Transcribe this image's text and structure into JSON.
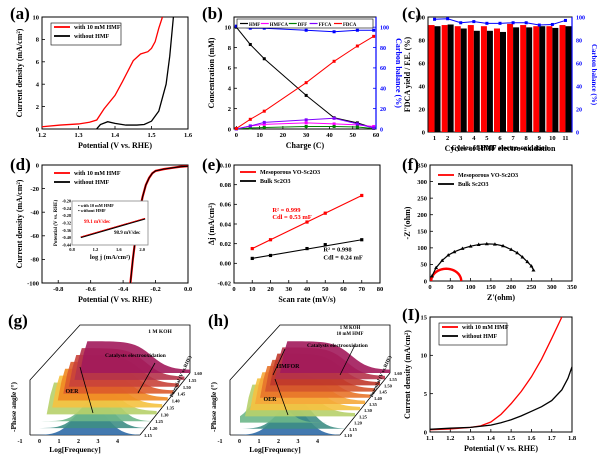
{
  "chart_data": [
    {
      "id": "a",
      "panel_label": "(a)",
      "type": "line",
      "xlabel": "Potential (V vs. RHE)",
      "ylabel": "Current density (mA/cm²)",
      "xlim": [
        1.2,
        1.6
      ],
      "ylim": [
        0,
        10
      ],
      "xticks": [
        "1.2",
        "1.3",
        "1.4",
        "1.5",
        "1.6"
      ],
      "yticks": [
        "0",
        "2",
        "4",
        "6",
        "8",
        "10"
      ],
      "legend": "top-left",
      "series": [
        {
          "name": "with 10 mM HMF",
          "color": "#ff0000",
          "x": [
            1.2,
            1.25,
            1.3,
            1.33,
            1.35,
            1.37,
            1.4,
            1.42,
            1.45,
            1.47,
            1.49,
            1.5,
            1.51,
            1.52,
            1.53
          ],
          "y": [
            0.2,
            0.35,
            0.45,
            0.6,
            0.8,
            1.8,
            3.0,
            4.2,
            6.1,
            6.7,
            6.9,
            7.2,
            7.8,
            9.0,
            10
          ]
        },
        {
          "name": "without HMF",
          "color": "#000000",
          "x": [
            1.35,
            1.36,
            1.38,
            1.4,
            1.43,
            1.46,
            1.48,
            1.5,
            1.52,
            1.54,
            1.55,
            1.56
          ],
          "y": [
            0.02,
            0.4,
            0.65,
            0.5,
            0.35,
            0.35,
            0.4,
            0.7,
            1.6,
            4.0,
            6.5,
            10
          ]
        }
      ]
    },
    {
      "id": "b",
      "panel_label": "(b)",
      "type": "line",
      "xlabel": "Charge (C)",
      "ylabel": "Concentration (mM)",
      "y2label": "Carbon balance (%)",
      "xlim": [
        -1,
        60
      ],
      "ylim": [
        0,
        11
      ],
      "y2lim": [
        0,
        110
      ],
      "xticks": [
        "0",
        "10",
        "20",
        "30",
        "40",
        "50",
        "60"
      ],
      "yticks": [
        "0",
        "2",
        "4",
        "6",
        "8",
        "10"
      ],
      "y2ticks": [
        "0",
        "20",
        "40",
        "60",
        "80",
        "100"
      ],
      "legend": "top",
      "series": [
        {
          "name": "HMF",
          "color": "#000000",
          "x": [
            0,
            6,
            12,
            30,
            42,
            52,
            59
          ],
          "y": [
            10,
            8.3,
            6.9,
            3.3,
            1.1,
            0.6,
            0.1
          ]
        },
        {
          "name": "HMFCA",
          "color": "#ff00ff",
          "x": [
            0,
            6,
            12,
            30,
            42,
            52,
            59
          ],
          "y": [
            0,
            0.3,
            0.45,
            0.6,
            0.5,
            0.4,
            0.25
          ]
        },
        {
          "name": "DFF",
          "color": "#008000",
          "x": [
            0,
            6,
            12,
            30,
            42,
            52,
            59
          ],
          "y": [
            0,
            0.1,
            0.15,
            0.25,
            0.25,
            0.2,
            0.05
          ]
        },
        {
          "name": "FFCA",
          "color": "#7f00ff",
          "x": [
            0,
            6,
            12,
            30,
            42,
            52,
            59
          ],
          "y": [
            0,
            0.3,
            0.65,
            0.9,
            1.05,
            0.5,
            0.1
          ]
        },
        {
          "name": "FDCA",
          "color": "#ff0000",
          "x": [
            0,
            6,
            12,
            30,
            42,
            52,
            59
          ],
          "y": [
            0.05,
            0.95,
            1.75,
            4.55,
            6.65,
            8.15,
            9.1
          ]
        },
        {
          "name": "Carbon balance",
          "color": "#0000ff",
          "axis": "right",
          "x": [
            0,
            6,
            12,
            30,
            42,
            52,
            59
          ],
          "y": [
            101,
            99,
            99,
            97,
            95.5,
            97,
            97
          ]
        }
      ]
    },
    {
      "id": "c",
      "panel_label": "(c)",
      "type": "bar",
      "xlabel": "Cycles of HMF electro-oxidation",
      "ylabel": "FDCA yield / F.E. (%)",
      "y2label": "Carbon balance (%)",
      "ylim": [
        0,
        100
      ],
      "y2lim": [
        0,
        100
      ],
      "yticks": [
        "0",
        "20",
        "40",
        "60",
        "80",
        "100"
      ],
      "y2ticks": [
        "0",
        "20",
        "40",
        "60",
        "80",
        "100"
      ],
      "categories": [
        "1",
        "2",
        "3",
        "4",
        "5",
        "6",
        "7",
        "8",
        "9",
        "10",
        "11"
      ],
      "series": [
        {
          "name": "FDCA yield",
          "color": "#ff0000",
          "values": [
            93,
            93,
            92,
            93,
            92,
            90,
            94,
            93,
            92,
            92,
            93
          ]
        },
        {
          "name": "F.E.",
          "color": "#000000",
          "values": [
            92,
            93.5,
            90,
            88,
            88,
            87,
            91,
            91,
            92,
            90.5,
            92
          ]
        },
        {
          "name": "Carbon balance",
          "color": "#0000ff",
          "axis": "right",
          "values": [
            98,
            98.5,
            95,
            96,
            94.5,
            94.5,
            95,
            95,
            93,
            93.5,
            97
          ]
        }
      ]
    },
    {
      "id": "d",
      "panel_label": "(d)",
      "type": "line",
      "xlabel": "Potential (V vs. RHE)",
      "ylabel": "Current density (mA/cm²)",
      "xlim": [
        -0.9,
        0.0
      ],
      "ylim": [
        -100,
        0
      ],
      "xticks": [
        "-0.8",
        "-0.6",
        "-0.4",
        "-0.2",
        "0.0"
      ],
      "yticks": [
        "-100",
        "-80",
        "-60",
        "-40",
        "-20",
        "0"
      ],
      "legend": "top-left",
      "series": [
        {
          "name": "with 10 mM HMF",
          "color": "#ff0000",
          "x": [
            -0.355,
            -0.34,
            -0.32,
            -0.3,
            -0.28,
            -0.26,
            -0.24,
            -0.22,
            -0.2,
            -0.15,
            -0.1,
            -0.05,
            0
          ],
          "y": [
            -100,
            -80,
            -58,
            -40,
            -27,
            -17,
            -11,
            -7,
            -5,
            -3.5,
            -2.5,
            -1.5,
            -1
          ]
        },
        {
          "name": "without HMF",
          "color": "#000000",
          "x": [
            -0.355,
            -0.34,
            -0.32,
            -0.3,
            -0.28,
            -0.26,
            -0.24,
            -0.22,
            -0.2,
            -0.15,
            -0.1,
            -0.05,
            0
          ],
          "y": [
            -100,
            -80,
            -58,
            -40,
            -27,
            -17,
            -11,
            -7,
            -5,
            -3.5,
            -2.5,
            -1.5,
            -1
          ]
        }
      ],
      "inset": {
        "xlabel": "log j (mA/cm²)",
        "ylabel": "Potential (V vs. RHE)",
        "xticks": [
          "0.8",
          "1.2",
          "1.6",
          "2.0"
        ],
        "yticks": [
          "-0.44",
          "-0.40",
          "-0.36",
          "-0.32",
          "-0.28",
          "-0.24",
          "-0.20"
        ],
        "legend": [
          "with 10 mM HMF",
          "without HMF"
        ],
        "annotations": [
          "99.1 mV/dec",
          "98.9 mV/dec"
        ],
        "x": [
          0.95,
          2.05
        ],
        "y": [
          -0.245,
          -0.355
        ]
      }
    },
    {
      "id": "e",
      "panel_label": "(e)",
      "type": "scatter",
      "xlabel": "Scan rate (mV/s)",
      "ylabel": "Δj (mA/cm²)",
      "xlim": [
        0,
        80
      ],
      "ylim": [
        -0.02,
        0.1
      ],
      "xticks": [
        "0",
        "10",
        "20",
        "30",
        "40",
        "50",
        "60",
        "70",
        "80"
      ],
      "yticks": [
        "-0.02",
        "0.00",
        "0.02",
        "0.04",
        "0.06",
        "0.08",
        "0.10"
      ],
      "legend": "top-left",
      "series": [
        {
          "name": "Mesoporous VO-Sc2O3",
          "color": "#ff0000",
          "x": [
            10,
            20,
            40,
            50,
            70
          ],
          "y": [
            0.015,
            0.024,
            0.042,
            0.051,
            0.069
          ]
        },
        {
          "name": "Bulk Sc2O3",
          "color": "#000000",
          "x": [
            10,
            20,
            40,
            50,
            70
          ],
          "y": [
            0.005,
            0.008,
            0.015,
            0.019,
            0.024
          ]
        }
      ],
      "annotations": [
        {
          "text": "R² = 0.999",
          "color": "#ff0000"
        },
        {
          "text": "Cdl = 0.53 mF",
          "color": "#ff0000"
        },
        {
          "text": "R² = 0.998",
          "color": "#000000"
        },
        {
          "text": "Cdl = 0.24 mF",
          "color": "#000000"
        }
      ]
    },
    {
      "id": "f",
      "panel_label": "(f)",
      "type": "scatter",
      "xlabel": "Z'(ohm)",
      "ylabel": "-Z''(ohm)",
      "xlim": [
        0,
        350
      ],
      "ylim": [
        0,
        350
      ],
      "xticks": [
        "0",
        "50",
        "100",
        "150",
        "200",
        "250",
        "300",
        "350"
      ],
      "yticks": [
        "0",
        "50",
        "100",
        "150",
        "200",
        "250",
        "300",
        "350"
      ],
      "legend": "top-left",
      "series": [
        {
          "name": "Mesoporous VO-Sc2O3",
          "color": "#ff0000",
          "center": 40,
          "radius": 37,
          "x_range": [
            3,
            77
          ]
        },
        {
          "name": "Bulk Sc2O3",
          "color": "#000000",
          "x": [
            5,
            15,
            30,
            45,
            60,
            80,
            100,
            120,
            140,
            160,
            180,
            200,
            215,
            228,
            240,
            250,
            255
          ],
          "y": [
            15,
            40,
            62,
            78,
            88,
            98,
            105,
            110,
            112,
            111,
            106,
            95,
            85,
            72,
            58,
            45,
            33
          ]
        }
      ]
    },
    {
      "id": "g",
      "panel_label": "(g)",
      "type": "area",
      "xlabel": "Log[Frequency]",
      "ylabel": "-Phase angle (°)",
      "zlabel": "Potential (V vs.RHE)",
      "xticks": [
        "-1",
        "0",
        "1",
        "2",
        "3",
        "4"
      ],
      "zticks": [
        "1.15",
        "1.20",
        "1.25",
        "1.30",
        "1.35",
        "1.40",
        "1.45",
        "1.50",
        "1.55",
        "1.60"
      ],
      "annotations": [
        "1 M KOH",
        "Catalysts electrooxidation",
        "OER"
      ],
      "series_colors": [
        "#a21a5b",
        "#b5334a",
        "#c9433a",
        "#dc5a2b",
        "#ef8a22",
        "#f5c240",
        "#b7d06a",
        "#6db78a",
        "#3e8e85",
        "#2f6aa6"
      ]
    },
    {
      "id": "h",
      "panel_label": "(h)",
      "type": "area",
      "xlabel": "Log[Frequency]",
      "ylabel": "-Phase angle (°)",
      "zlabel": "Potential (V vs.RHE)",
      "xticks": [
        "-1",
        "0",
        "1",
        "2",
        "3",
        "4"
      ],
      "zticks": [
        "1.10",
        "1.15",
        "1.20",
        "1.25",
        "1.30",
        "1.35",
        "1.40",
        "1.45",
        "1.50",
        "1.55",
        "1.60"
      ],
      "annotations": [
        "1 M KOH",
        "10 mM HMF",
        "Catalysts electrooxidation",
        "HMFOR",
        "OER"
      ],
      "series_colors": [
        "#a21a5b",
        "#b5334a",
        "#c0392b",
        "#d4542c",
        "#e8742a",
        "#f5a93a",
        "#f5c240",
        "#b7d06a",
        "#6db78a",
        "#3e8e85",
        "#2f6aa6"
      ]
    },
    {
      "id": "i",
      "panel_label": "(I)",
      "type": "line",
      "xlabel": "Potential (V vs. RHE)",
      "ylabel": "Current density (mA/cm²)",
      "xlim": [
        1.1,
        1.8
      ],
      "ylim": [
        0,
        15
      ],
      "xticks": [
        "1.1",
        "1.2",
        "1.3",
        "1.4",
        "1.5",
        "1.6",
        "1.7",
        "1.8"
      ],
      "yticks": [
        "0",
        "5",
        "10",
        "15"
      ],
      "legend": "top-left",
      "series": [
        {
          "name": "with 10 mM HMF",
          "color": "#ff0000",
          "x": [
            1.1,
            1.2,
            1.3,
            1.35,
            1.4,
            1.45,
            1.5,
            1.55,
            1.6,
            1.65,
            1.7,
            1.75
          ],
          "y": [
            0.3,
            0.4,
            0.6,
            0.8,
            1.3,
            2.3,
            3.7,
            5.3,
            7.2,
            9.5,
            12.2,
            15
          ]
        },
        {
          "name": "without HMF",
          "color": "#000000",
          "x": [
            1.1,
            1.2,
            1.3,
            1.4,
            1.45,
            1.5,
            1.55,
            1.6,
            1.65,
            1.7,
            1.75,
            1.78,
            1.8
          ],
          "y": [
            0.35,
            0.5,
            0.6,
            0.9,
            1.2,
            1.6,
            2.1,
            2.7,
            3.3,
            4.1,
            5.5,
            7.0,
            8.5
          ]
        }
      ]
    }
  ]
}
